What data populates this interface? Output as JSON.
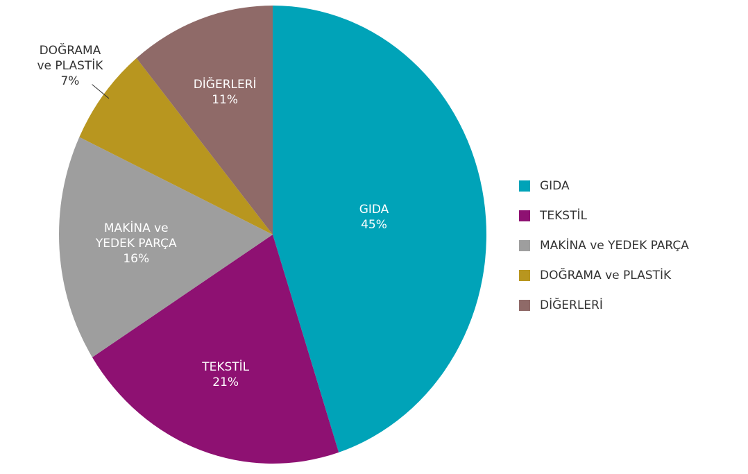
{
  "chart_data": {
    "type": "pie",
    "categories": [
      "GIDA",
      "TEKSTİL",
      "MAKİNA ve YEDEK PARÇA",
      "DOĞRAMA ve PLASTİK",
      "DİĞERLERİ"
    ],
    "values": [
      45,
      21,
      16,
      7,
      11
    ],
    "value_labels": [
      "45%",
      "21%",
      "16%",
      "7%",
      "11%"
    ],
    "colors": [
      "#00a3b8",
      "#8e1172",
      "#9e9e9e",
      "#b8961f",
      "#8f6a68"
    ],
    "legend": "right"
  }
}
